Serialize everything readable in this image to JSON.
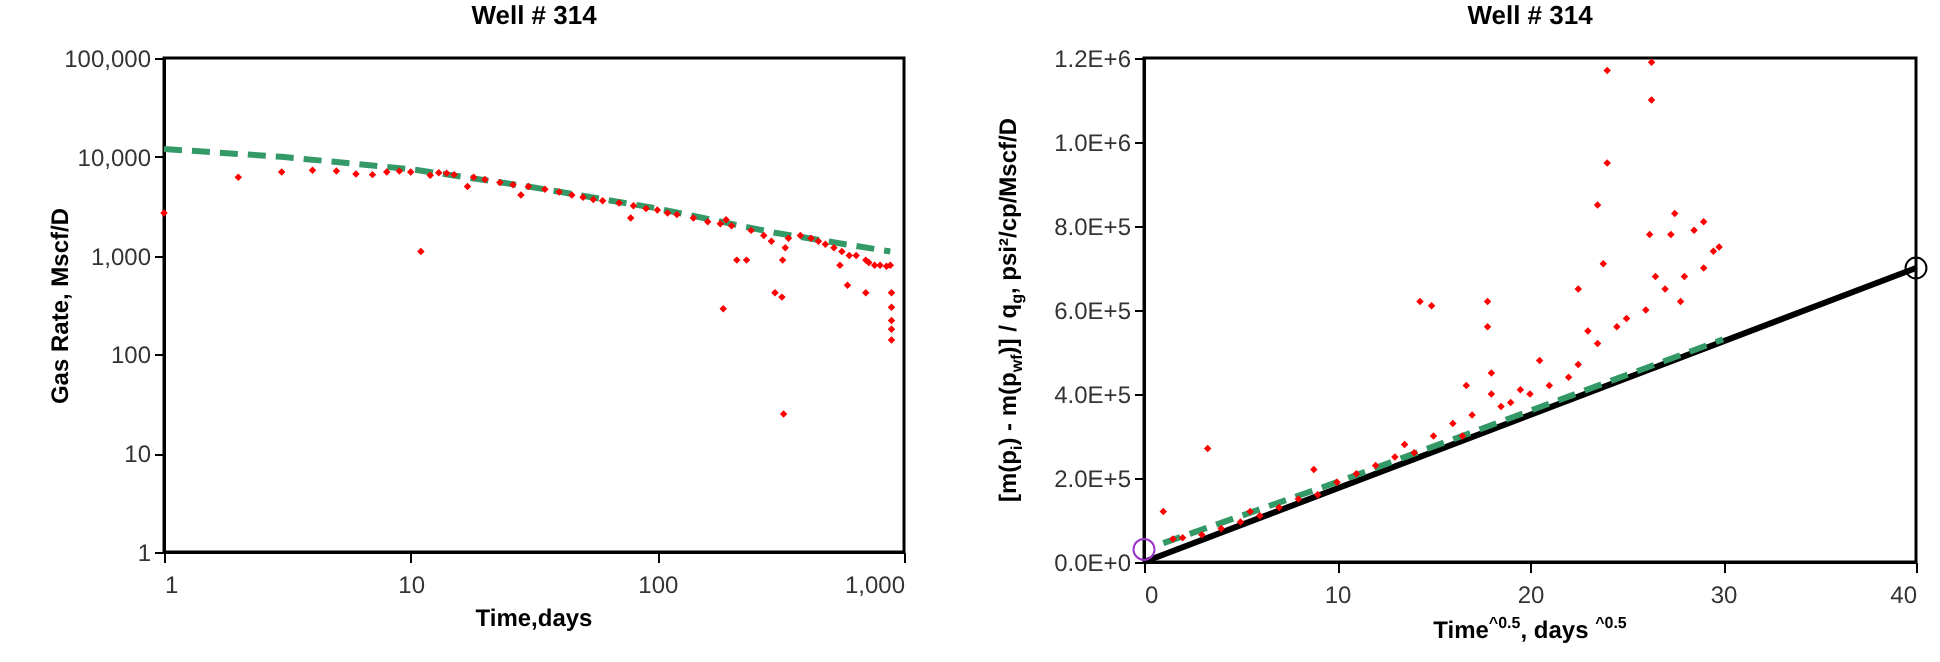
{
  "chart_data": [
    {
      "type": "scatter",
      "title": "Well # 314",
      "xlabel": "Time,days",
      "ylabel": "Gas Rate, Mscf/D",
      "log": "xy",
      "xlim": [
        1,
        1000
      ],
      "ylim": [
        1,
        100000
      ],
      "xticks": [
        1,
        10,
        100,
        {
          "value": 1000,
          "label": "1,000"
        }
      ],
      "yticks": [
        1,
        10,
        100,
        {
          "value": 1000,
          "label": "1,000"
        },
        {
          "value": 10000,
          "label": "10,000"
        },
        {
          "value": 100000,
          "label": "100,000"
        }
      ],
      "series": [
        {
          "type": "line",
          "color": "#339966",
          "line_style": "dashed",
          "x": [
            1,
            3,
            10,
            30,
            100,
            300,
            880
          ],
          "values": [
            12000,
            10000,
            7500,
            5000,
            3000,
            1700,
            1100
          ]
        },
        {
          "type": "scatter",
          "color": "#ff0000",
          "marker": "diamond",
          "x": [
            1,
            2,
            3,
            4,
            5,
            6,
            7,
            8,
            9,
            10,
            11,
            12,
            13,
            14,
            15,
            17,
            18,
            20,
            23,
            26,
            28,
            30,
            35,
            40,
            45,
            50,
            55,
            60,
            70,
            78,
            80,
            90,
            100,
            110,
            120,
            140,
            160,
            180,
            185,
            190,
            200,
            210,
            230,
            240,
            270,
            290,
            300,
            320,
            325,
            322,
            330,
            340,
            380,
            420,
            450,
            480,
            520,
            550,
            560,
            590,
            600,
            640,
            700,
            700,
            720,
            760,
            800,
            850,
            880,
            890,
            890,
            890,
            890,
            890
          ],
          "values": [
            2700,
            6200,
            7000,
            7300,
            7200,
            6700,
            6600,
            7000,
            7200,
            7000,
            1100,
            6500,
            6900,
            6800,
            6600,
            5000,
            6200,
            5900,
            5500,
            5200,
            4100,
            5000,
            4700,
            4400,
            4100,
            3900,
            3700,
            3600,
            3400,
            2400,
            3200,
            3000,
            2900,
            2700,
            2600,
            2400,
            2200,
            2100,
            290,
            2300,
            2000,
            900,
            900,
            1800,
            1600,
            1400,
            420,
            380,
            25,
            900,
            1200,
            1500,
            1600,
            1500,
            1400,
            1300,
            1200,
            800,
            1100,
            500,
            1000,
            1000,
            900,
            420,
            850,
            800,
            800,
            780,
            800,
            420,
            300,
            220,
            180,
            140
          ]
        }
      ]
    },
    {
      "type": "scatter",
      "title": "Well # 314",
      "xlabel": "Time$^{^0.5}$, days $^{^0.5}$",
      "ylabel": "[m(p$_{i}$) - m(p$_{wf}$)] / q$_{g}$,  psi²/cp/Mscf/D",
      "xlim": [
        0,
        40
      ],
      "ylim": [
        0,
        1200000
      ],
      "xticks": [
        0,
        10,
        20,
        30,
        40
      ],
      "yticks": [
        {
          "value": 0,
          "label": "0.0E+0"
        },
        {
          "value": 200000,
          "label": "2.0E+5"
        },
        {
          "value": 400000,
          "label": "4.0E+5"
        },
        {
          "value": 600000,
          "label": "6.0E+5"
        },
        {
          "value": 800000,
          "label": "8.0E+5"
        },
        {
          "value": 1000000,
          "label": "1.0E+6"
        },
        {
          "value": 1200000,
          "label": "1.2E+6"
        }
      ],
      "series": [
        {
          "type": "scatter",
          "color": "#ff0000",
          "marker": "diamond",
          "x": [
            1,
            1.5,
            2,
            3,
            3.3,
            4,
            5,
            5.5,
            6,
            7,
            8,
            8.8,
            9,
            10,
            11,
            12,
            13,
            13.5,
            14,
            14.3,
            14.9,
            15,
            16,
            16.5,
            16.7,
            17,
            17.8,
            17.8,
            18,
            18,
            18.5,
            19,
            19.5,
            20,
            20.5,
            21,
            22,
            22.5,
            22.5,
            23,
            23.5,
            23.5,
            23.8,
            24,
            24,
            24.5,
            25,
            26,
            26.2,
            26.3,
            26.3,
            26.5,
            27,
            27.3,
            27.5,
            27.8,
            28,
            28.5,
            29,
            29,
            29.5,
            29.8
          ],
          "values": [
            120000,
            55000,
            58000,
            65000,
            270000,
            80000,
            95000,
            120000,
            110000,
            130000,
            150000,
            220000,
            160000,
            190000,
            210000,
            230000,
            250000,
            280000,
            260000,
            620000,
            610000,
            300000,
            330000,
            300000,
            420000,
            350000,
            620000,
            560000,
            450000,
            400000,
            370000,
            380000,
            410000,
            400000,
            480000,
            420000,
            440000,
            470000,
            650000,
            550000,
            850000,
            520000,
            710000,
            950000,
            1170000,
            560000,
            580000,
            600000,
            780000,
            1100000,
            1190000,
            680000,
            650000,
            780000,
            830000,
            620000,
            680000,
            790000,
            810000,
            700000,
            740000,
            750000
          ]
        },
        {
          "type": "line",
          "color": "#339966",
          "line_style": "dashed",
          "x": [
            1,
            10,
            20,
            30
          ],
          "values": [
            45000,
            190000,
            360000,
            530000
          ]
        },
        {
          "type": "line",
          "color": "#000000",
          "line_style": "solid",
          "x": [
            0,
            40
          ],
          "values": [
            0,
            700000
          ]
        },
        {
          "type": "scatter",
          "color": "#9933cc",
          "marker": "circle",
          "x": [
            0
          ],
          "values": [
            30000
          ]
        },
        {
          "type": "scatter",
          "color": "#000000",
          "marker": "circle",
          "x": [
            40
          ],
          "values": [
            700000
          ]
        }
      ]
    }
  ]
}
